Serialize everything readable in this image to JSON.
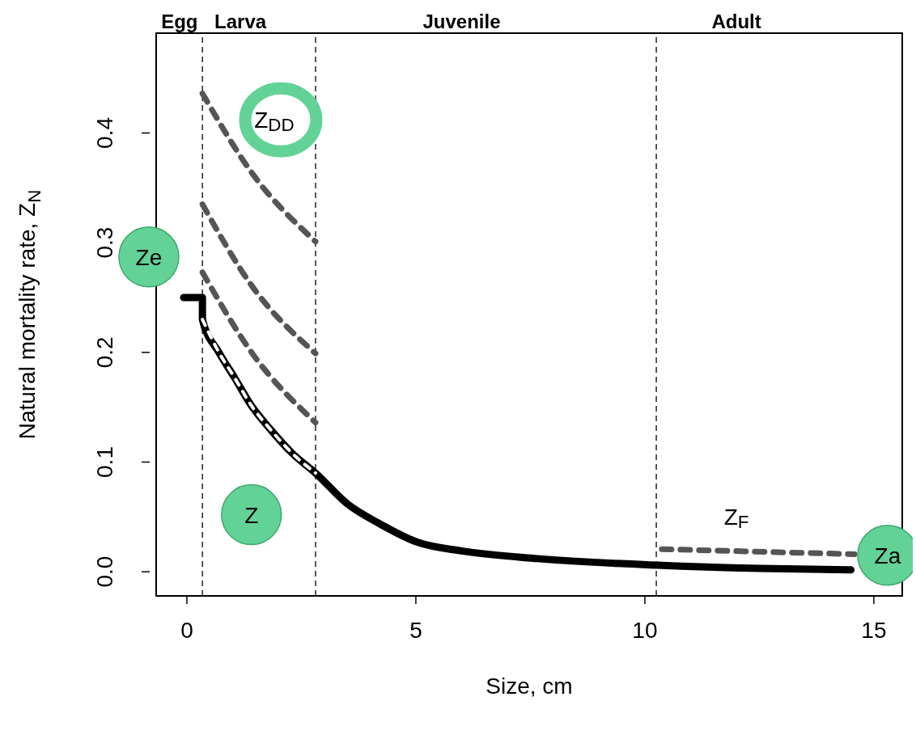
{
  "chart_data": {
    "type": "line",
    "xlabel": "Size, cm",
    "ylabel": "Natural mortality rate,  Z$_{N}$",
    "xlim": [
      -0.67,
      15.62
    ],
    "ylim": [
      -0.022,
      0.491
    ],
    "xticks": [
      0,
      5,
      10,
      15
    ],
    "yticks": [
      {
        "value": 0,
        "label": "0.0"
      },
      0.1,
      0.2,
      0.3,
      0.4
    ],
    "series": [
      {
        "color": "#000000",
        "line_style": "solid",
        "x": [
          -0.07,
          0.34,
          0.34,
          0.7,
          1.04,
          1.4,
          1.82,
          2.3,
          2.81,
          3.5,
          4.2,
          5.03,
          6.0,
          7.65,
          10.27,
          12.5,
          14.5
        ],
        "values": [
          0.25,
          0.25,
          0.23,
          0.2,
          0.177,
          0.152,
          0.13,
          0.108,
          0.09,
          0.062,
          0.044,
          0.027,
          0.019,
          0.012,
          0.006,
          0.003,
          0.0017
        ]
      },
      {
        "color": "#ffffff",
        "line_style": "dashed",
        "x": [
          0.34,
          0.7,
          1.04,
          1.4,
          1.82,
          2.3,
          2.81
        ],
        "values": [
          0.23,
          0.2,
          0.177,
          0.152,
          0.13,
          0.108,
          0.09
        ]
      },
      {
        "color": "#555555",
        "line_style": "dashed",
        "x": [
          0.34,
          1.43,
          2.81
        ],
        "values": [
          0.436,
          0.363,
          0.301
        ]
      },
      {
        "color": "#555555",
        "line_style": "dashed",
        "x": [
          0.34,
          1.43,
          2.81
        ],
        "values": [
          0.335,
          0.26,
          0.199
        ]
      },
      {
        "color": "#555555",
        "line_style": "dashed",
        "x": [
          0.34,
          1.43,
          2.81
        ],
        "values": [
          0.273,
          0.199,
          0.136
        ]
      },
      {
        "color": "#555555",
        "line_style": "dashed",
        "x": [
          10.37,
          14.58
        ],
        "values": [
          0.0206,
          0.016
        ]
      }
    ],
    "ref_lines": [
      {
        "axis": "x",
        "value": 0.34,
        "color": "#000000",
        "line_style": "dashed"
      },
      {
        "axis": "x",
        "value": 2.81,
        "color": "#000000",
        "line_style": "dashed"
      },
      {
        "axis": "x",
        "value": 10.25,
        "color": "#000000",
        "line_style": "dashed"
      }
    ],
    "annotations": [
      "Egg",
      "Larva",
      "Juvenile",
      "Adult",
      "Ze",
      "Z$_{DD}$",
      "Z",
      "Z$_{F}$",
      "Za"
    ]
  }
}
